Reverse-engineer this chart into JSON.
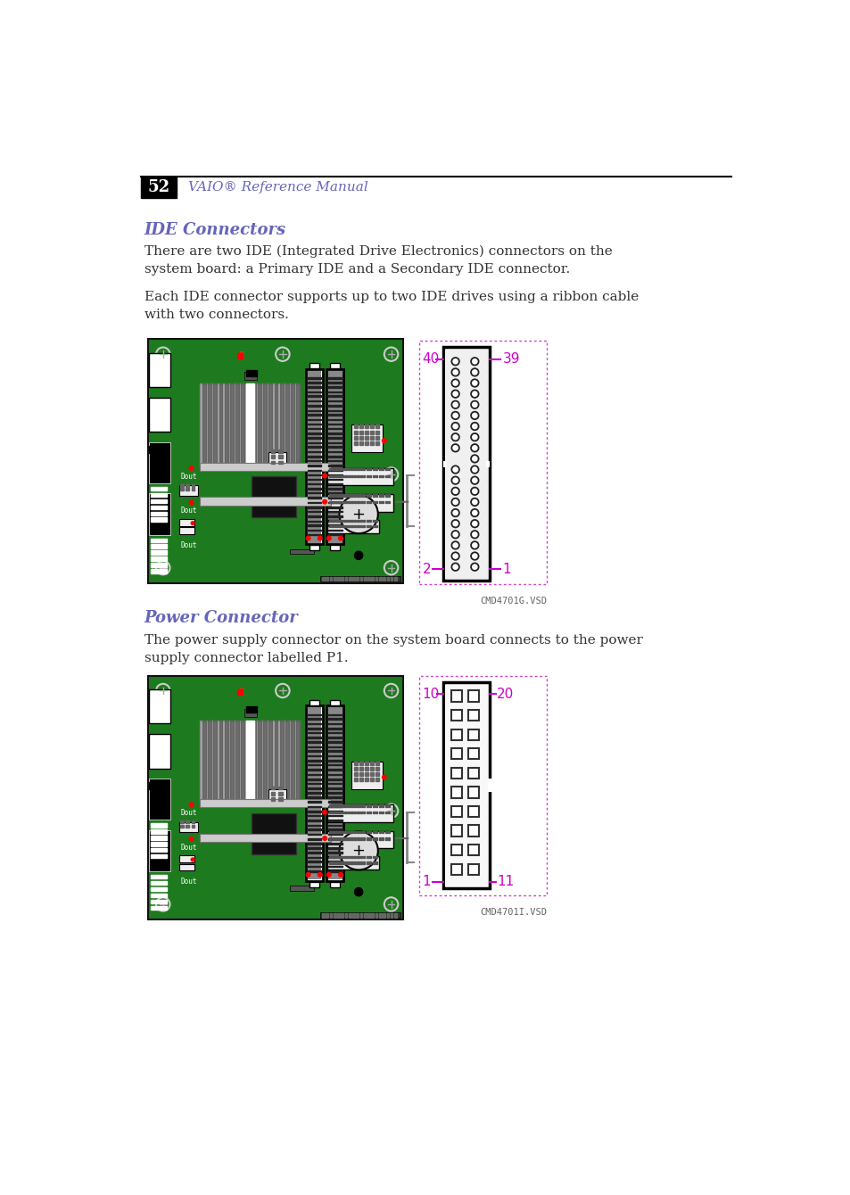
{
  "page_num": "52",
  "header_text": "VAIO® Reference Manual",
  "header_color": "#6666bb",
  "section1_title": "IDE Connectors",
  "section1_color": "#6666bb",
  "section1_p1": "There are two IDE (Integrated Drive Electronics) connectors on the\nsystem board: a Primary IDE and a Secondary IDE connector.",
  "section1_p2": "Each IDE connector supports up to two IDE drives using a ribbon cable\nwith two connectors.",
  "section2_title": "Power Connector",
  "section2_color": "#6666bb",
  "section2_p1": "The power supply connector on the system board connects to the power\nsupply connector labelled P1.",
  "ide_label_40": "40",
  "ide_label_39": "39",
  "ide_label_2": "2",
  "ide_label_1": "1",
  "pwr_label_10": "10",
  "pwr_label_20": "20",
  "pwr_label_1": "1",
  "pwr_label_11": "11",
  "label_color": "#cc00cc",
  "dashed_box_color": "#cc44cc",
  "board_green": "#1e7a1e",
  "filename1": "CMD4701G.VSD",
  "filename2": "CMD4701I.VSD",
  "text_color": "#333333",
  "bg_color": "#ffffff",
  "board_border": "#111111"
}
